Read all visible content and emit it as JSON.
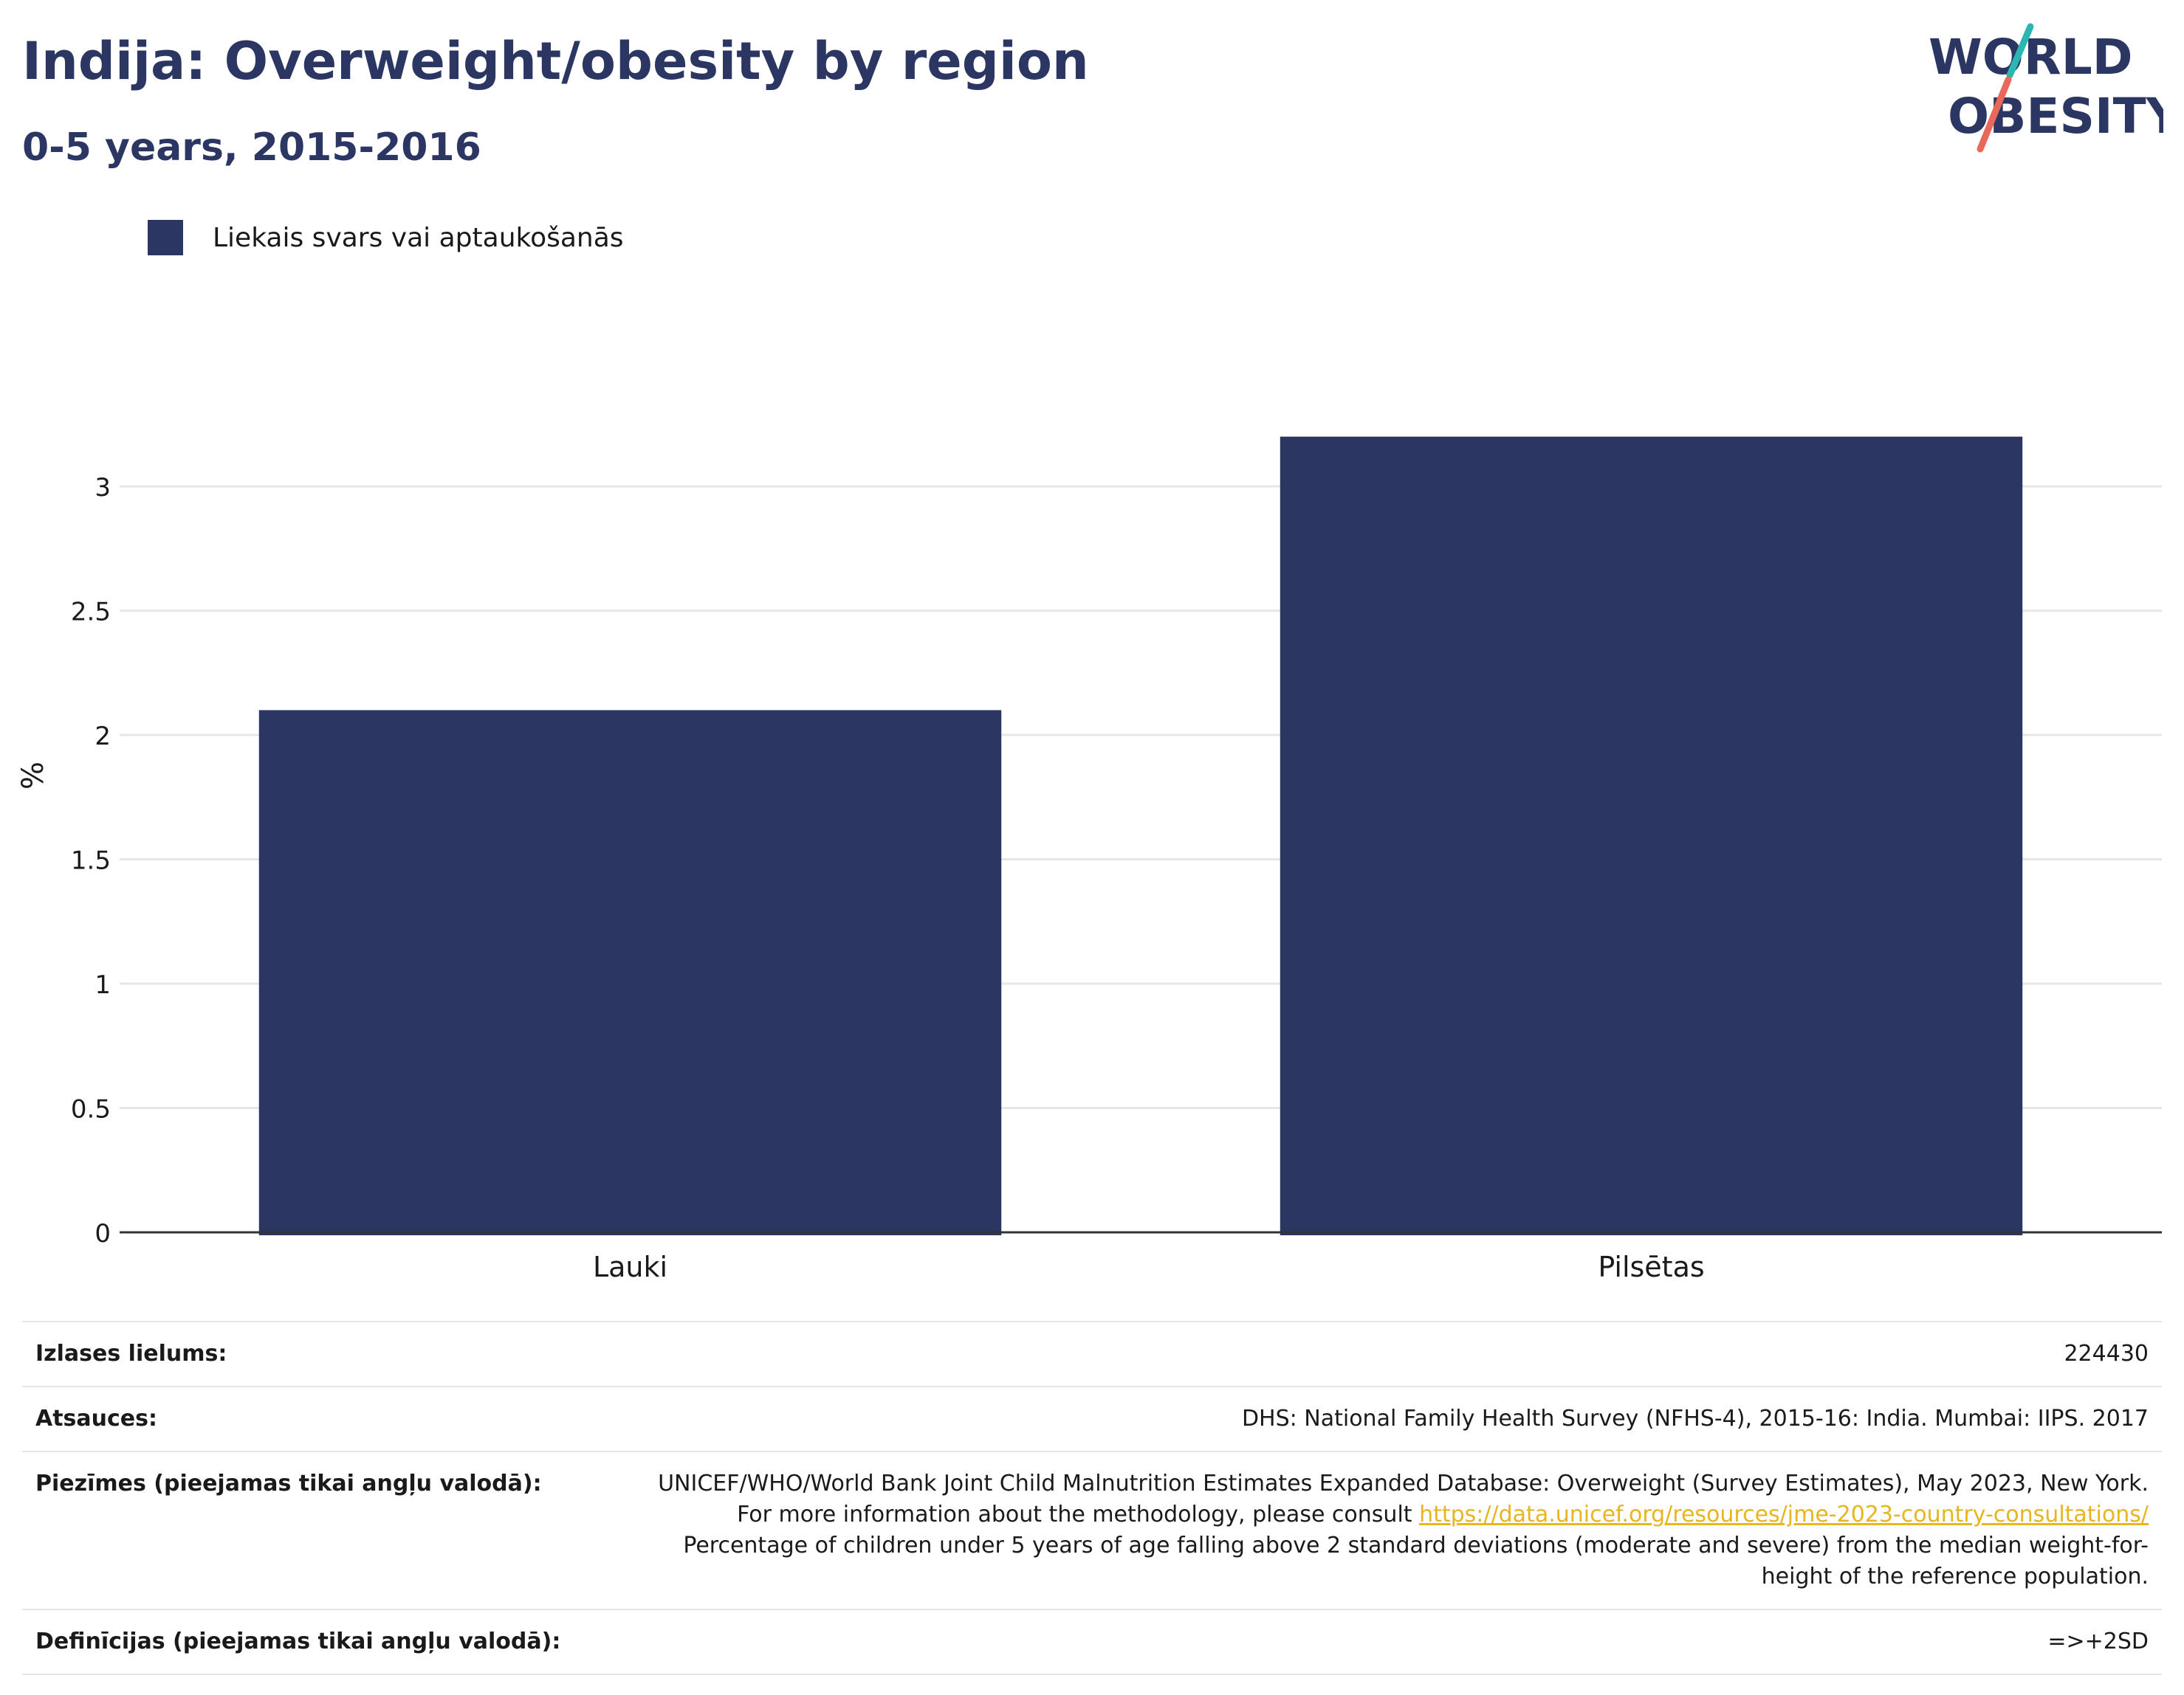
{
  "header": {
    "title": "Indija: Overweight/obesity by region",
    "subtitle": "0-5 years, 2015-2016"
  },
  "logo": {
    "line1": "WORLD",
    "line2": "OBESITY",
    "text_color": "#2b3663",
    "accent_teal": "#2bb5b3",
    "accent_coral": "#e8685a"
  },
  "legend": {
    "label": "Liekais svars vai aptaukošanās",
    "color": "#2b3663"
  },
  "chart_data": {
    "type": "bar",
    "categories": [
      "Lauki",
      "Pilsētas"
    ],
    "series": [
      {
        "name": "Liekais svars vai aptaukošanās",
        "values": [
          2.1,
          3.2
        ],
        "color": "#2b3663"
      }
    ],
    "ylabel": "%",
    "xlabel": "",
    "ylim": [
      0,
      3.3
    ],
    "yticks": [
      "0",
      "0.5",
      "1",
      "1.5",
      "2",
      "2.5",
      "3"
    ],
    "grid": true
  },
  "info": {
    "sample_size_label": "Izlases lielums:",
    "sample_size_value": "224430",
    "sources_label": "Atsauces:",
    "sources_value": "DHS: National Family Health Survey (NFHS-4), 2015-16: India. Mumbai: IIPS. 2017",
    "notes_label": "Piezīmes (pieejamas tikai angļu valodā):",
    "notes_text1": "UNICEF/WHO/World Bank Joint Child Malnutrition Estimates Expanded Database: Overweight (Survey Estimates), May 2023, New York. For more information about the methodology, please consult",
    "notes_link": "https://data.unicef.org/resources/jme-2023-country-consultations/",
    "notes_text2": "Percentage of children under 5 years of age falling above 2 standard deviations (moderate and severe) from the median weight-for-height of the reference population.",
    "definitions_label": "Definīcijas (pieejamas tikai angļu valodā):",
    "definitions_value": "=>+2SD"
  }
}
